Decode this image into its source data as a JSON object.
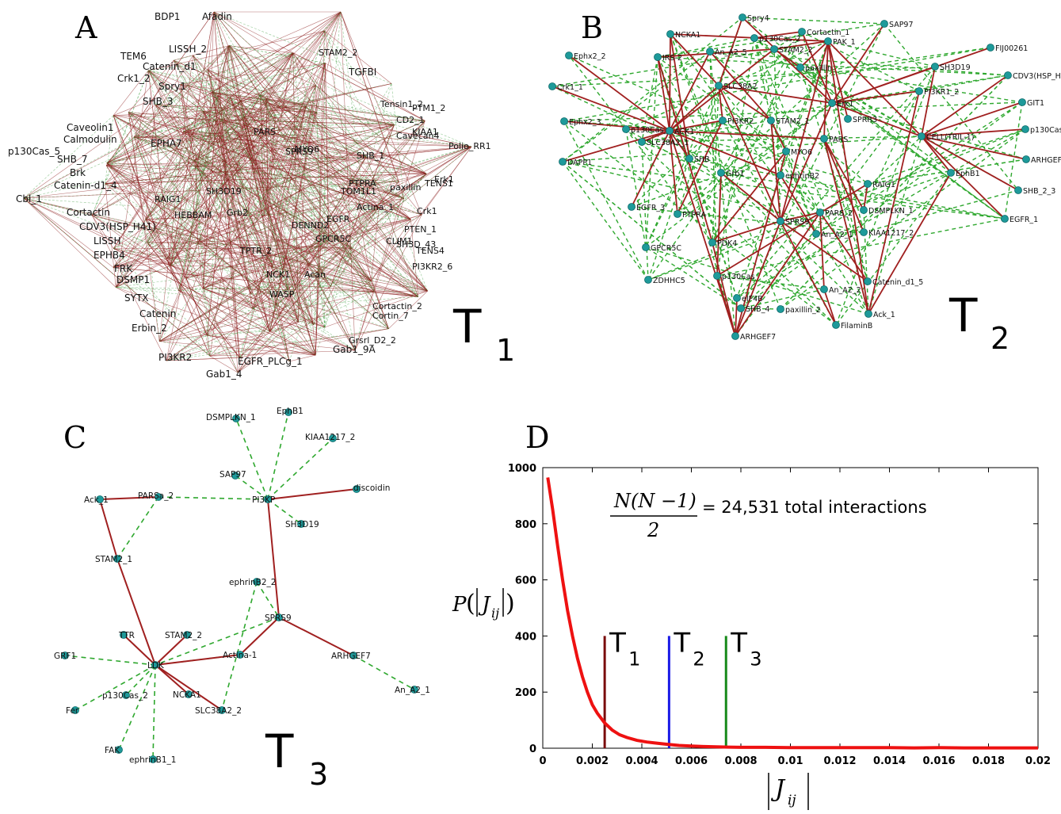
{
  "panels": {
    "A": {
      "letter": "A",
      "label": "T",
      "sub": "1",
      "labels": [
        "BDP1",
        "Afadin",
        "TEM6",
        "LISSH_2",
        "Catenin_d1",
        "Crk1_2",
        "Spry1",
        "SHB_3",
        "Caveolin1",
        "EPHA7",
        "Calmodulin",
        "p130Cas_5",
        "SHB_7",
        "Brk",
        "Catenin-d1_4",
        "Cbl_1",
        "Cortactin",
        "CDV3(HSP_H41)",
        "LISSH",
        "EPHB4",
        "FRK",
        "DSMP1",
        "SYTX",
        "Catenin",
        "Erbin_2",
        "PI3KR2",
        "Gab1_4",
        "EGFR_PLCg_1",
        "Gab1_9A",
        "TGFBI",
        "Polio_RR1",
        "KIAA1",
        "Cavecan4",
        "STAM2_2",
        "PARS",
        "TOM1L1",
        "SH3D19",
        "RAIG1",
        "HEBBAM",
        "PTPRA",
        "PTM1_2",
        "Tensin1_2",
        "CD2_1",
        "paxillin",
        "TENS1",
        "Crk1",
        "Erk1",
        "SHB_1",
        "Actina_1",
        "GPCR5C",
        "TPTR_2",
        "DENND2",
        "CLIM1",
        "TENS4",
        "Grb2",
        "MYO6",
        "EGFR",
        "NCK1",
        "WASP",
        "Acan",
        "SPRS9",
        "PI3KR2_6",
        "SH3D_43",
        "PTEN_1",
        "Cortactin_2",
        "Cortin_7",
        "Grsrl_D2_2"
      ]
    },
    "B": {
      "letter": "B",
      "label": "T",
      "sub": "2"
    },
    "C": {
      "letter": "C",
      "label": "T",
      "sub": "3"
    },
    "D": {
      "letter": "D"
    }
  },
  "networkB": {
    "nodes": [
      {
        "id": "b0",
        "label": "Spry4"
      },
      {
        "id": "b1",
        "label": "NCKA1"
      },
      {
        "id": "b2",
        "label": "Cortactin_1"
      },
      {
        "id": "b3",
        "label": "SAP97"
      },
      {
        "id": "b4",
        "label": "Ephx2_2"
      },
      {
        "id": "b5",
        "label": "p130Cas_2"
      },
      {
        "id": "b6",
        "label": "STAM2_2"
      },
      {
        "id": "b7",
        "label": "PAK_1"
      },
      {
        "id": "b8",
        "label": "FIJ00261"
      },
      {
        "id": "b9",
        "label": "IRS-2"
      },
      {
        "id": "b10",
        "label": "An_A2_5"
      },
      {
        "id": "b11",
        "label": "SH3D19"
      },
      {
        "id": "b12",
        "label": "CDV3(HSP_H41)"
      },
      {
        "id": "b13",
        "label": "Crk1_1"
      },
      {
        "id": "b14",
        "label": "SLC38A2"
      },
      {
        "id": "b15",
        "label": "paxillin"
      },
      {
        "id": "b16",
        "label": "PI3KR1_2"
      },
      {
        "id": "b17",
        "label": "GIT1"
      },
      {
        "id": "b18",
        "label": "Ephx2_3"
      },
      {
        "id": "b19",
        "label": "p130Cas_4"
      },
      {
        "id": "b20",
        "label": "STAM2_1"
      },
      {
        "id": "b21",
        "label": "p130Cas_1"
      },
      {
        "id": "b22",
        "label": "SLC38A2_1"
      },
      {
        "id": "b23",
        "label": "Erk1"
      },
      {
        "id": "b24",
        "label": "SPRR3"
      },
      {
        "id": "b25",
        "label": "PARS"
      },
      {
        "id": "b26",
        "label": "PI3KR2"
      },
      {
        "id": "b27",
        "label": "CELL(TRIL-1)"
      },
      {
        "id": "b28",
        "label": "ARHGEF5"
      },
      {
        "id": "b29",
        "label": "DAPP1"
      },
      {
        "id": "b30",
        "label": "SHB"
      },
      {
        "id": "b31",
        "label": "Grb1"
      },
      {
        "id": "b32",
        "label": "ephrinB2"
      },
      {
        "id": "b33",
        "label": "MYO6"
      },
      {
        "id": "b34",
        "label": "EphB1"
      },
      {
        "id": "b35",
        "label": "SHB_2_3"
      },
      {
        "id": "b36",
        "label": "EGFR_3"
      },
      {
        "id": "b37",
        "label": "RAIG1"
      },
      {
        "id": "b38",
        "label": "PTPRA"
      },
      {
        "id": "b39",
        "label": "EGFR_1"
      },
      {
        "id": "b40",
        "label": "SPRS9"
      },
      {
        "id": "b41",
        "label": "PARS_2"
      },
      {
        "id": "b42",
        "label": "DSMPLKN_1"
      },
      {
        "id": "b43",
        "label": "GPCR5C"
      },
      {
        "id": "b44",
        "label": "PDK4"
      },
      {
        "id": "b45",
        "label": "KIAA1217_2"
      },
      {
        "id": "b46",
        "label": "ZDHHC5"
      },
      {
        "id": "b47",
        "label": "p130Cas"
      },
      {
        "id": "b48",
        "label": "Catenin_d1_5"
      },
      {
        "id": "b49",
        "label": "An_A2_1"
      },
      {
        "id": "b50",
        "label": "An_A2_2"
      },
      {
        "id": "b51",
        "label": "eIF4B"
      },
      {
        "id": "b52",
        "label": "SHB_4"
      },
      {
        "id": "b53",
        "label": "paxillin_2"
      },
      {
        "id": "b54",
        "label": "Ack_1"
      },
      {
        "id": "b55",
        "label": "ARHGEF7"
      },
      {
        "id": "b56",
        "label": "FilaminB"
      },
      {
        "id": "b57",
        "label": "ACK1"
      }
    ]
  },
  "networkC": {
    "nodes": [
      {
        "id": "c0",
        "label": "EphB1"
      },
      {
        "id": "c1",
        "label": "DSMPLKN_1"
      },
      {
        "id": "c2",
        "label": "KIAA1217_2"
      },
      {
        "id": "c3",
        "label": "SAP97"
      },
      {
        "id": "c4",
        "label": "discoidin"
      },
      {
        "id": "c5",
        "label": "Ack_1"
      },
      {
        "id": "c6",
        "label": "PARSa_2"
      },
      {
        "id": "c7",
        "label": "PI3KP"
      },
      {
        "id": "c8",
        "label": "SH3D19"
      },
      {
        "id": "c9",
        "label": "STAM2_1"
      },
      {
        "id": "c10",
        "label": "ephrinB2_2"
      },
      {
        "id": "c11",
        "label": "SPRS9"
      },
      {
        "id": "c12",
        "label": "TTR"
      },
      {
        "id": "c13",
        "label": "STAM2_2"
      },
      {
        "id": "c14",
        "label": "ARHGEF7"
      },
      {
        "id": "c15",
        "label": "GRF1"
      },
      {
        "id": "c16",
        "label": "LDK"
      },
      {
        "id": "c17",
        "label": "Actina-1"
      },
      {
        "id": "c18",
        "label": "p130Cas_2"
      },
      {
        "id": "c19",
        "label": "NCKA1"
      },
      {
        "id": "c20",
        "label": "An_A2_1"
      },
      {
        "id": "c21",
        "label": "Fer"
      },
      {
        "id": "c22",
        "label": "SLC38A2_2"
      },
      {
        "id": "c23",
        "label": "FAK"
      },
      {
        "id": "c24",
        "label": "ephrinB1_1"
      }
    ]
  },
  "chart_data": {
    "type": "line",
    "title": "",
    "xlabel": "|J_ij|",
    "ylabel": "P(|J_ij|)",
    "xlim": [
      0,
      0.02
    ],
    "ylim": [
      0,
      1000
    ],
    "x_ticks": [
      "0",
      "0.002",
      "0.004",
      "0.006",
      "0.008",
      "0.01",
      "0.012",
      "0.014",
      "0.016",
      "0.018",
      "0.02"
    ],
    "y_ticks": [
      "0",
      "200",
      "400",
      "600",
      "800",
      "1000"
    ],
    "series": [
      {
        "color": "#ee1111",
        "x": [
          0.0002,
          0.0004,
          0.0006,
          0.0008,
          0.001,
          0.0012,
          0.0014,
          0.0016,
          0.0018,
          0.002,
          0.0022,
          0.0025,
          0.0028,
          0.0031,
          0.0034,
          0.0038,
          0.0042,
          0.0046,
          0.005,
          0.0055,
          0.006,
          0.0065,
          0.007,
          0.0075,
          0.008,
          0.009,
          0.01,
          0.011,
          0.012,
          0.013,
          0.014,
          0.015,
          0.016,
          0.017,
          0.018,
          0.019,
          0.02
        ],
        "y": [
          965,
          850,
          720,
          600,
          490,
          400,
          320,
          255,
          200,
          155,
          125,
          90,
          65,
          48,
          38,
          28,
          22,
          18,
          14,
          10,
          8,
          6,
          5,
          4,
          3,
          3,
          2,
          2,
          2,
          2,
          2,
          1,
          2,
          1,
          1,
          1,
          1
        ]
      }
    ],
    "markers": [
      {
        "label": "T",
        "sub": "1",
        "x": 0.0025,
        "height": 400,
        "color": "#7a0c0c"
      },
      {
        "label": "T",
        "sub": "2",
        "x": 0.0051,
        "height": 400,
        "color": "#1a1ae6"
      },
      {
        "label": "T",
        "sub": "3",
        "x": 0.0074,
        "height": 400,
        "color": "#178a1a"
      }
    ],
    "annotation": {
      "numerator": "N(N −1)",
      "denominator": "2",
      "text": "= 24,531 total interactions"
    }
  }
}
